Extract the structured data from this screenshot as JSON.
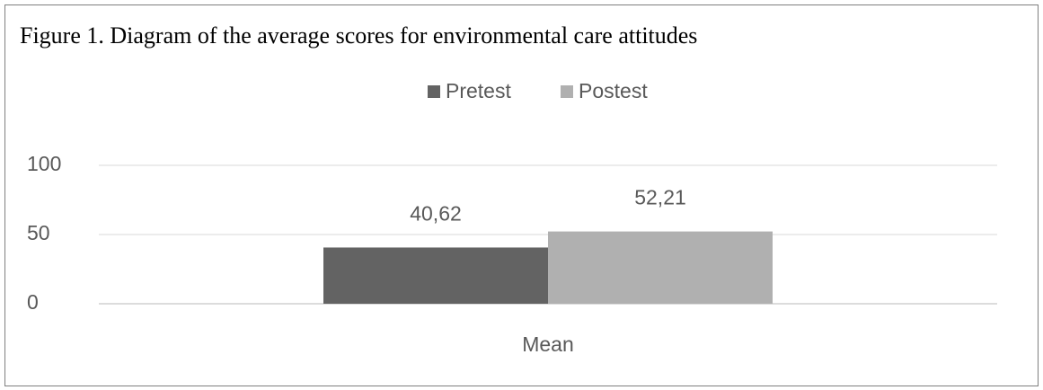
{
  "chart_data": {
    "type": "bar",
    "title": "Figure 1. Diagram of the average scores for environmental care attitudes",
    "categories": [
      "Mean"
    ],
    "series": [
      {
        "name": "Pretest",
        "color": "#636363",
        "values": [
          40.62
        ],
        "value_labels": [
          "40,62"
        ]
      },
      {
        "name": "Postest",
        "color": "#b0b0b0",
        "values": [
          52.21
        ],
        "value_labels": [
          "52,21"
        ]
      }
    ],
    "ylim": [
      0,
      100
    ],
    "yticks": [
      0,
      50,
      100
    ],
    "grid": true,
    "legend": "top"
  }
}
